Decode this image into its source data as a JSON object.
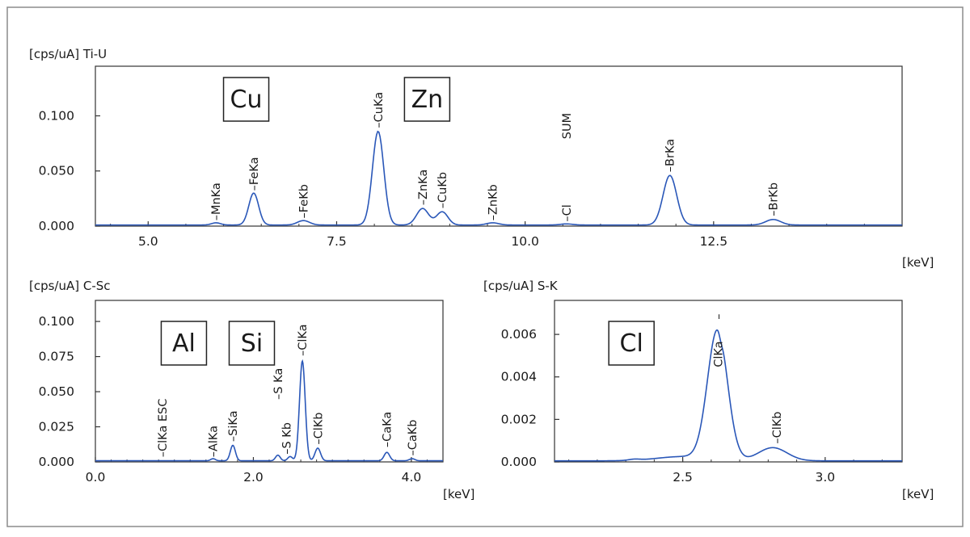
{
  "chart_data": [
    {
      "id": "top",
      "type": "line",
      "range_title": "[cps/uA] Ti-U",
      "unit_label": "[keV]",
      "xlim": [
        4.3,
        15.0
      ],
      "ylim": [
        0.0,
        0.145
      ],
      "x_ticks": [
        {
          "v": 5.0,
          "label": "5.0"
        },
        {
          "v": 7.5,
          "label": "7.5"
        },
        {
          "v": 10.0,
          "label": "10.0"
        },
        {
          "v": 12.5,
          "label": "12.5"
        }
      ],
      "y_ticks": [
        {
          "v": 0.0,
          "label": "0.000"
        },
        {
          "v": 0.05,
          "label": "0.050"
        },
        {
          "v": 0.1,
          "label": "0.100"
        }
      ],
      "element_boxes": [
        {
          "label": "Cu",
          "x": 6.3
        },
        {
          "label": "Zn",
          "x": 8.7
        }
      ],
      "peak_labels": [
        {
          "text": "–MnKa",
          "x": 5.9,
          "y": 0.002
        },
        {
          "text": "–FeKa",
          "x": 6.4,
          "y": 0.029
        },
        {
          "text": "–FeKb",
          "x": 7.06,
          "y": 0.004
        },
        {
          "text": "–CuKa",
          "x": 8.05,
          "y": 0.086
        },
        {
          "text": "–ZnKa",
          "x": 8.64,
          "y": 0.016
        },
        {
          "text": "–CuKb",
          "x": 8.9,
          "y": 0.013
        },
        {
          "text": "–ZnKb",
          "x": 9.57,
          "y": 0.002
        },
        {
          "text": "–Cl",
          "x": 10.55,
          "y": 0.001
        },
        {
          "text": "SUM",
          "x": 10.55,
          "y": 0.076
        },
        {
          "text": "–BrKa",
          "x": 11.92,
          "y": 0.046
        },
        {
          "text": "–BrKb",
          "x": 13.29,
          "y": 0.006
        }
      ],
      "baseline": 0.001,
      "peaks": [
        {
          "x": 5.9,
          "h": 0.002,
          "w": 0.06
        },
        {
          "x": 6.4,
          "h": 0.029,
          "w": 0.065
        },
        {
          "x": 7.06,
          "h": 0.004,
          "w": 0.08
        },
        {
          "x": 8.05,
          "h": 0.085,
          "w": 0.075
        },
        {
          "x": 8.64,
          "h": 0.015,
          "w": 0.08
        },
        {
          "x": 8.9,
          "h": 0.012,
          "w": 0.075
        },
        {
          "x": 9.57,
          "h": 0.002,
          "w": 0.08
        },
        {
          "x": 10.55,
          "h": 0.001,
          "w": 0.08
        },
        {
          "x": 11.92,
          "h": 0.045,
          "w": 0.09
        },
        {
          "x": 13.29,
          "h": 0.005,
          "w": 0.1
        }
      ]
    },
    {
      "id": "bottom-left",
      "type": "line",
      "range_title": "[cps/uA] C-Sc",
      "unit_label": "[keV]",
      "xlim": [
        0.0,
        4.4
      ],
      "ylim": [
        0.0,
        0.115
      ],
      "x_ticks": [
        {
          "v": 0.0,
          "label": "0.0"
        },
        {
          "v": 2.0,
          "label": "2.0"
        },
        {
          "v": 4.0,
          "label": "4.0"
        }
      ],
      "y_ticks": [
        {
          "v": 0.0,
          "label": "0.000"
        },
        {
          "v": 0.025,
          "label": "0.025"
        },
        {
          "v": 0.05,
          "label": "0.050"
        },
        {
          "v": 0.075,
          "label": "0.075"
        },
        {
          "v": 0.1,
          "label": "0.100"
        }
      ],
      "element_boxes": [
        {
          "label": "Al",
          "x": 1.12
        },
        {
          "label": "Si",
          "x": 1.98
        }
      ],
      "peak_labels": [
        {
          "text": "–ClKa  ESC",
          "x": 0.85,
          "y": 0.001
        },
        {
          "text": "–AlKa",
          "x": 1.49,
          "y": 0.001
        },
        {
          "text": "–SiKa",
          "x": 1.74,
          "y": 0.012
        },
        {
          "text": "–S Kb",
          "x": 2.42,
          "y": 0.003
        },
        {
          "text": "–S Ka",
          "x": 2.31,
          "y": 0.042
        },
        {
          "text": "–ClKa",
          "x": 2.62,
          "y": 0.073
        },
        {
          "text": "–ClKb",
          "x": 2.82,
          "y": 0.01
        },
        {
          "text": "–CaKa",
          "x": 3.69,
          "y": 0.008
        },
        {
          "text": "–CaKb",
          "x": 4.01,
          "y": 0.002
        }
      ],
      "baseline": 0.0008,
      "peaks": [
        {
          "x": 1.49,
          "h": 0.0015,
          "w": 0.03
        },
        {
          "x": 1.74,
          "h": 0.011,
          "w": 0.032
        },
        {
          "x": 2.31,
          "h": 0.004,
          "w": 0.03
        },
        {
          "x": 2.465,
          "h": 0.003,
          "w": 0.03
        },
        {
          "x": 2.62,
          "h": 0.071,
          "w": 0.036
        },
        {
          "x": 2.815,
          "h": 0.009,
          "w": 0.035
        },
        {
          "x": 3.69,
          "h": 0.006,
          "w": 0.035
        },
        {
          "x": 4.01,
          "h": 0.0015,
          "w": 0.035
        }
      ]
    },
    {
      "id": "bottom-right",
      "type": "line",
      "range_title": "[cps/uA] S-K",
      "unit_label": "[keV]",
      "xlim": [
        2.05,
        3.27
      ],
      "ylim": [
        0.0,
        0.0076
      ],
      "x_ticks": [
        {
          "v": 2.5,
          "label": "2.5"
        },
        {
          "v": 3.0,
          "label": "3.0"
        }
      ],
      "y_ticks": [
        {
          "v": 0.0,
          "label": "0.000"
        },
        {
          "v": 0.002,
          "label": "0.002"
        },
        {
          "v": 0.004,
          "label": "0.004"
        },
        {
          "v": 0.006,
          "label": "0.006"
        }
      ],
      "element_boxes": [
        {
          "label": "Cl",
          "x": 2.32
        }
      ],
      "peak_labels": [
        {
          "text": "ClKa",
          "x": 2.625,
          "y": 0.0043
        },
        {
          "text": "–ClKb",
          "x": 2.83,
          "y": 0.0007
        }
      ],
      "center_tick": {
        "x": 2.625,
        "text": "–"
      },
      "baseline": 5e-05,
      "peaks": [
        {
          "x": 2.622,
          "h": 0.0061,
          "w": 0.035
        },
        {
          "x": 2.816,
          "h": 0.00062,
          "w": 0.05
        },
        {
          "x": 2.33,
          "h": 5e-05,
          "w": 0.02
        }
      ]
    }
  ]
}
